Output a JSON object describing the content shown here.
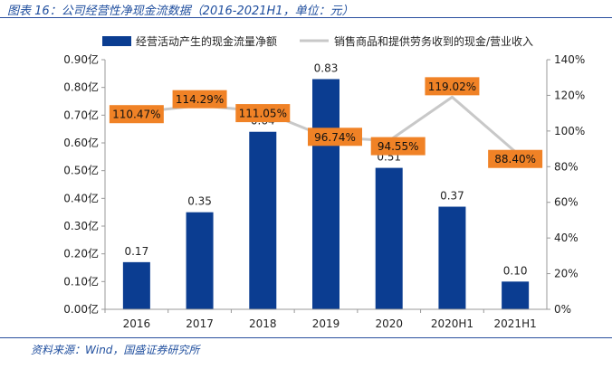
{
  "header": {
    "title": "图表 16：公司经营性净现金流数据（2016-2021H1，单位：元）"
  },
  "footer": {
    "source": "资料来源：Wind，国盛证券研究所"
  },
  "colors": {
    "bar": "#0b3d91",
    "line": "#c8c8c8",
    "label_bg": "#f08226",
    "text": "#222222",
    "axis": "#999999"
  },
  "chart_data": {
    "type": "bar",
    "categories": [
      "2016",
      "2017",
      "2018",
      "2019",
      "2020",
      "2020H1",
      "2021H1"
    ],
    "series": [
      {
        "name": "经营活动产生的现金流量净额",
        "type": "bar",
        "axis": "left",
        "values": [
          0.17,
          0.35,
          0.64,
          0.83,
          0.51,
          0.37,
          0.1
        ],
        "labels": [
          "0.17",
          "0.35",
          "0.64",
          "0.83",
          "0.51",
          "0.37",
          "0.10"
        ]
      },
      {
        "name": "销售商品和提供劳务收到的现金/营业收入",
        "type": "line",
        "axis": "right",
        "values": [
          110.47,
          114.29,
          111.05,
          96.74,
          94.55,
          119.02,
          88.4
        ],
        "labels": [
          "110.47%",
          "114.29%",
          "111.05%",
          "96.74%",
          "94.55%",
          "119.02%",
          "88.40%"
        ]
      }
    ],
    "left_axis": {
      "ylim": [
        0,
        0.9
      ],
      "ticks": [
        0,
        0.1,
        0.2,
        0.3,
        0.4,
        0.5,
        0.6,
        0.7,
        0.8,
        0.9
      ],
      "tick_labels": [
        "0.00亿",
        "0.10亿",
        "0.20亿",
        "0.30亿",
        "0.40亿",
        "0.50亿",
        "0.60亿",
        "0.70亿",
        "0.80亿",
        "0.90亿"
      ]
    },
    "right_axis": {
      "ylim": [
        0,
        140
      ],
      "ticks": [
        0,
        20,
        40,
        60,
        80,
        100,
        120,
        140
      ],
      "tick_labels": [
        "0%",
        "20%",
        "40%",
        "60%",
        "80%",
        "100%",
        "120%",
        "140%"
      ]
    },
    "legend_position": "top",
    "grid": false
  }
}
